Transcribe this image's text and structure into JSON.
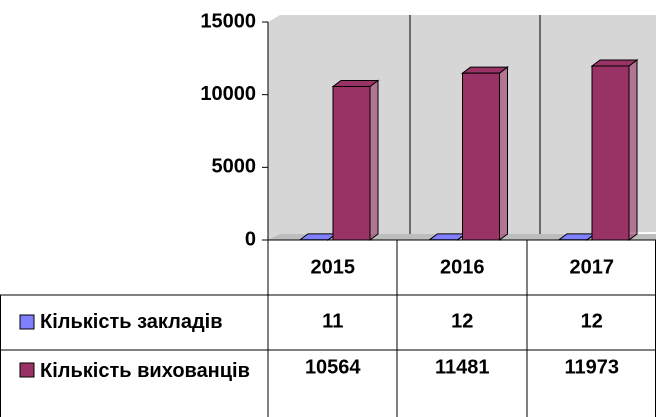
{
  "chart_data": {
    "type": "bar3d",
    "categories": [
      "2015",
      "2016",
      "2017"
    ],
    "series": [
      {
        "name": "Кількість закладів",
        "color": "#8080ff",
        "values": [
          11,
          12,
          12
        ]
      },
      {
        "name": "Кількість вихованців",
        "color": "#993366",
        "values": [
          10564,
          11481,
          11973
        ]
      }
    ],
    "ylim": [
      0,
      15000
    ],
    "yticks": [
      0,
      5000,
      10000,
      15000
    ],
    "grid": false
  }
}
